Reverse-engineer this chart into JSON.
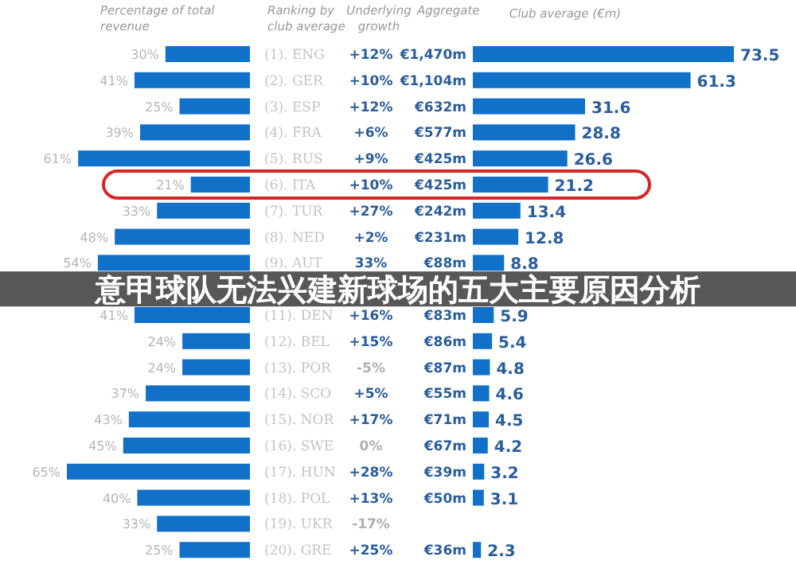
{
  "chart_data": [
    {
      "type": "bar",
      "orientation": "horizontal",
      "title": "意甲球队无法兴建新球场的五大主要原因分析",
      "xlabel": "Percentage of total revenue",
      "ylabel": "Ranking by club average",
      "color": "#1170c8",
      "categories": [
        "(1). ENG",
        "(2). GER",
        "(3). ESP",
        "(4). FRA",
        "(5). RUS",
        "(6). ITA",
        "(7). TUR",
        "(8). NED",
        "(9). AUT",
        null,
        "(11). DEN",
        "(12). BEL",
        "(13). POR",
        "(14). SCO",
        "(15). NOR",
        "(16). SWE",
        "(17). HUN",
        "(18). POL",
        "(19). UKR",
        "(20). GRE"
      ],
      "values": [
        30,
        41,
        25,
        39,
        61,
        21,
        33,
        48,
        54,
        null,
        41,
        24,
        24,
        37,
        43,
        45,
        65,
        40,
        33,
        25
      ],
      "value_labels": [
        "30%",
        "41%",
        "25%",
        "39%",
        "61%",
        "21%",
        "33%",
        "48%",
        "54%",
        null,
        "41%",
        "24%",
        "24%",
        "37%",
        "43%",
        "45%",
        "65%",
        "40%",
        "33%",
        "25%"
      ]
    },
    {
      "type": "other",
      "title": "Underlying growth",
      "annotations": [
        {
          "text": "+12%",
          "y": "(1). ENG"
        },
        {
          "text": "+10%",
          "y": "(2). GER"
        },
        {
          "text": "+12%",
          "y": "(3). ESP"
        },
        {
          "text": "+6%",
          "y": "(4). FRA"
        },
        {
          "text": "+9%",
          "y": "(5). RUS"
        },
        {
          "text": "+10%",
          "y": "(6). ITA"
        },
        {
          "text": "+27%",
          "y": "(7). TUR"
        },
        {
          "text": "+2%",
          "y": "(8). NED"
        },
        {
          "text": "33%",
          "y": "(9). AUT"
        },
        {
          "text": "+16%",
          "y": "(11). DEN"
        },
        {
          "text": "+15%",
          "y": "(12). BEL"
        },
        {
          "text": "-5%",
          "y": "(13). POR"
        },
        {
          "text": "+5%",
          "y": "(14). SCO"
        },
        {
          "text": "+17%",
          "y": "(15). NOR"
        },
        {
          "text": "0%",
          "y": "(16). SWE"
        },
        {
          "text": "+28%",
          "y": "(17). HUN"
        },
        {
          "text": "+13%",
          "y": "(18). POL"
        },
        {
          "text": "-17%",
          "y": "(19). UKR"
        },
        {
          "text": "+25%",
          "y": "(20). GRE"
        }
      ]
    },
    {
      "type": "other",
      "title": "Aggregate",
      "annotations": [
        {
          "text": "€1,470m",
          "y": "(1). ENG"
        },
        {
          "text": "€1,104m",
          "y": "(2). GER"
        },
        {
          "text": "€632m",
          "y": "(3). ESP"
        },
        {
          "text": "€577m",
          "y": "(4). FRA"
        },
        {
          "text": "€425m",
          "y": "(5). RUS"
        },
        {
          "text": "€425m",
          "y": "(6). ITA"
        },
        {
          "text": "€242m",
          "y": "(7). TUR"
        },
        {
          "text": "€231m",
          "y": "(8). NED"
        },
        {
          "text": "€88m",
          "y": "(9). AUT"
        },
        {
          "text": "€83m",
          "y": "(11). DEN"
        },
        {
          "text": "€86m",
          "y": "(12). BEL"
        },
        {
          "text": "€87m",
          "y": "(13). POR"
        },
        {
          "text": "€55m",
          "y": "(14). SCO"
        },
        {
          "text": "€71m",
          "y": "(15). NOR"
        },
        {
          "text": "€67m",
          "y": "(16). SWE"
        },
        {
          "text": "€39m",
          "y": "(17). HUN"
        },
        {
          "text": "€50m",
          "y": "(18). POL"
        },
        {
          "text": "€36m",
          "y": "(20). GRE"
        }
      ]
    },
    {
      "type": "bar",
      "orientation": "horizontal",
      "xlabel": "Club average (€m)",
      "color": "#1170c8",
      "data_labels": true,
      "categories": [
        null,
        null,
        null,
        null,
        null,
        null,
        null,
        null,
        null,
        null,
        null,
        null,
        null,
        null,
        null,
        null,
        null,
        null,
        null,
        null
      ],
      "values": [
        73.5,
        61.3,
        31.6,
        28.8,
        26.6,
        21.2,
        13.4,
        12.8,
        8.8,
        null,
        5.9,
        5.4,
        4.8,
        4.6,
        4.5,
        4.2,
        3.2,
        3.1,
        null,
        2.3
      ]
    }
  ]
}
